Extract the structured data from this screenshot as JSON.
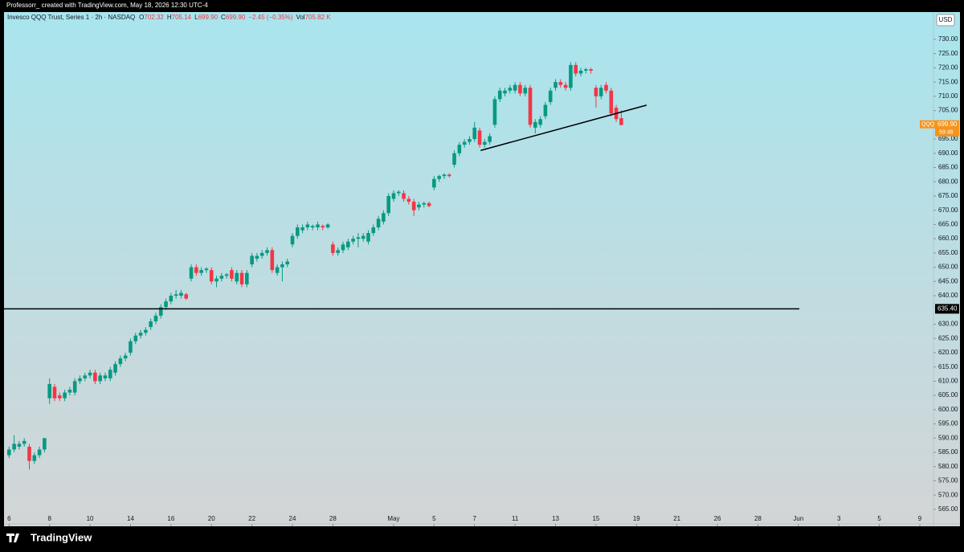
{
  "chart_data": {
    "type": "candlestick",
    "header_text": "Professorr_ created with TradingView.com, May 18, 2026 12:30 UTC-4",
    "symbol_name": "Invesco QQQ Trust, Series 1 · 2h · NASDAQ",
    "ohlc_legend": [
      {
        "label": "O",
        "value": "702.32"
      },
      {
        "label": "H",
        "value": "705.14"
      },
      {
        "label": "L",
        "value": "699.90"
      },
      {
        "label": "C",
        "value": "699.90"
      },
      {
        "label": "",
        "value": "−2.45 (−0.35%)"
      },
      {
        "label": "Vol",
        "value": "705.82 K"
      }
    ],
    "currency": "USD",
    "symbol": "QQQ",
    "countdown": "59:48",
    "brand": "TradingView",
    "up_color": "#089981",
    "down_color": "#f23645",
    "x": [
      0,
      1,
      2,
      3,
      4,
      5,
      6,
      7,
      8,
      9,
      10,
      11,
      12,
      13,
      14,
      15,
      16,
      17,
      18,
      19,
      20,
      21,
      22,
      23,
      24,
      25,
      26,
      27,
      28,
      29,
      30,
      31,
      32,
      33,
      34,
      35,
      36,
      37,
      38,
      39,
      40,
      41,
      42,
      43,
      44,
      45,
      46,
      47,
      48,
      49,
      50,
      51,
      52,
      53,
      54,
      55,
      56,
      57,
      58,
      59,
      60,
      61,
      62,
      63,
      64,
      65,
      66,
      67,
      68,
      69,
      70,
      71,
      72,
      73,
      74,
      75,
      76,
      77,
      78,
      79,
      80,
      81,
      82,
      83,
      84,
      85,
      86,
      87,
      88,
      89,
      90,
      91,
      92,
      93,
      94,
      95,
      96,
      97,
      98,
      99,
      100,
      101,
      102,
      103,
      104,
      105,
      106,
      107,
      108,
      109,
      110,
      111,
      112,
      113,
      114,
      115,
      116,
      117,
      118,
      119,
      120,
      121
    ],
    "open": [
      584,
      586,
      587,
      588,
      587,
      582,
      584,
      586,
      604,
      608,
      605,
      604,
      606,
      606,
      610,
      611,
      612,
      613,
      610,
      611,
      611,
      613,
      616,
      618,
      620,
      624,
      626,
      627,
      629,
      631,
      633,
      636,
      638,
      640,
      640,
      640.5,
      646,
      650,
      648,
      649,
      649,
      645,
      646,
      647,
      649,
      645,
      648,
      644,
      651,
      653,
      654,
      655,
      656,
      648,
      650,
      651,
      658,
      661,
      663,
      664,
      664,
      664,
      664.5,
      664,
      658,
      655,
      656,
      657,
      659,
      660,
      660,
      659,
      662,
      664,
      666,
      669,
      674,
      676,
      676,
      674,
      673,
      671,
      672,
      672.5,
      678,
      681,
      682,
      682.5,
      686,
      690,
      693,
      694,
      695,
      698,
      693,
      694,
      700,
      709,
      711,
      712,
      712,
      714,
      711,
      713,
      699,
      700,
      703,
      708,
      713,
      715,
      714,
      713,
      721,
      718,
      719,
      719.5,
      713,
      710,
      714,
      712,
      706,
      702.32
    ],
    "high": [
      587,
      591,
      589,
      590,
      588,
      585,
      587,
      590,
      611,
      609,
      606,
      607,
      608,
      611,
      612,
      613,
      614,
      614,
      613,
      613,
      615,
      617,
      619,
      620,
      625,
      627,
      628,
      629,
      632,
      634,
      637,
      639,
      641,
      642,
      642,
      641,
      651,
      651,
      650,
      650,
      650,
      647,
      648,
      648,
      650,
      649,
      649,
      649,
      655,
      655,
      656,
      657,
      657,
      651,
      652,
      653,
      662,
      665,
      665,
      666,
      665,
      666,
      665,
      665.5,
      659,
      657,
      659,
      660,
      661,
      662,
      662,
      663,
      665,
      668,
      670,
      676,
      677,
      677,
      677,
      675,
      674,
      673,
      673,
      673,
      682,
      682.5,
      683,
      683,
      691,
      694,
      695,
      696,
      701,
      699,
      695,
      697,
      710,
      713,
      713,
      714,
      715,
      715,
      714,
      714,
      702,
      703,
      708,
      713,
      716,
      716,
      715,
      722,
      722,
      720,
      720,
      720,
      714,
      714,
      715,
      713,
      707,
      705.14
    ],
    "low": [
      583,
      585,
      586,
      587,
      579,
      581,
      583,
      585,
      602,
      603,
      603,
      603,
      605,
      605,
      609,
      610,
      611,
      609,
      609,
      610,
      610,
      612,
      615,
      617,
      619,
      623,
      625,
      626,
      628,
      630,
      632,
      635,
      637,
      639,
      639,
      638.5,
      645,
      647,
      647,
      648,
      644,
      643,
      645,
      646,
      645,
      644,
      643,
      643,
      650,
      652,
      653,
      654,
      648,
      647,
      645,
      650,
      657,
      660,
      662,
      663,
      663,
      663,
      663,
      663.5,
      654,
      654,
      655,
      656,
      658,
      657,
      659,
      658,
      661,
      663,
      665,
      668,
      673,
      675,
      673,
      672,
      668,
      670,
      671,
      671,
      677,
      680,
      681,
      681.5,
      685,
      689,
      692,
      693,
      694,
      692,
      692,
      693,
      699,
      708,
      710,
      711,
      711,
      710,
      710,
      699,
      697,
      699,
      702,
      707,
      712,
      713,
      712,
      712,
      717,
      717,
      718,
      718,
      706,
      709,
      711,
      703,
      701,
      699.9
    ],
    "close": [
      586,
      588,
      588,
      589,
      582,
      584,
      586,
      590,
      609,
      604,
      604,
      606,
      607,
      610,
      611,
      612,
      613,
      610,
      612,
      612,
      614,
      616,
      618,
      619,
      624,
      626,
      627,
      628,
      631,
      633,
      636,
      638,
      640,
      640.5,
      641,
      639,
      650,
      648,
      649,
      649.5,
      645,
      646,
      647,
      647.5,
      646,
      648,
      644,
      648,
      654,
      654,
      655,
      656,
      649,
      650,
      651,
      652,
      661,
      664,
      664,
      665,
      664.5,
      665,
      664,
      665,
      655,
      656,
      658,
      659,
      660,
      660.5,
      661,
      662,
      664,
      667,
      669,
      675,
      676,
      676.5,
      674,
      673,
      670,
      672,
      672.5,
      671.5,
      681,
      682,
      682.5,
      682,
      690,
      693,
      694,
      695,
      699,
      693,
      694,
      696,
      709,
      712,
      712,
      713,
      714,
      711,
      713,
      700,
      701,
      702,
      707,
      712,
      715,
      714,
      713,
      721,
      718,
      719,
      719.5,
      719,
      710,
      713,
      712,
      704,
      702,
      699.9
    ],
    "xlim": [
      -1,
      182.7
    ],
    "xticks": [
      {
        "value": 0,
        "label": "6"
      },
      {
        "value": 8,
        "label": "8"
      },
      {
        "value": 16,
        "label": "10"
      },
      {
        "value": 24,
        "label": "14"
      },
      {
        "value": 32,
        "label": "16"
      },
      {
        "value": 40,
        "label": "20"
      },
      {
        "value": 48,
        "label": "22"
      },
      {
        "value": 56,
        "label": "24"
      },
      {
        "value": 64,
        "label": "28"
      },
      {
        "value": 76,
        "label": "May"
      },
      {
        "value": 84,
        "label": "5"
      },
      {
        "value": 92,
        "label": "7"
      },
      {
        "value": 100,
        "label": "11"
      },
      {
        "value": 108,
        "label": "13"
      },
      {
        "value": 116,
        "label": "15"
      },
      {
        "value": 124,
        "label": "19"
      },
      {
        "value": 132,
        "label": "21"
      },
      {
        "value": 140,
        "label": "26"
      },
      {
        "value": 148,
        "label": "28"
      },
      {
        "value": 156,
        "label": "Jun"
      },
      {
        "value": 164,
        "label": "3"
      },
      {
        "value": 172,
        "label": "5"
      },
      {
        "value": 180,
        "label": "9"
      }
    ],
    "ylim": [
      559.9,
      739.3
    ],
    "yticks": [
      {
        "value": 565,
        "label": "565.00"
      },
      {
        "value": 570,
        "label": "570.00"
      },
      {
        "value": 575,
        "label": "575.00"
      },
      {
        "value": 580,
        "label": "580.00"
      },
      {
        "value": 585,
        "label": "585.00"
      },
      {
        "value": 590,
        "label": "590.00"
      },
      {
        "value": 595,
        "label": "595.00"
      },
      {
        "value": 600,
        "label": "600.00"
      },
      {
        "value": 605,
        "label": "605.00"
      },
      {
        "value": 610,
        "label": "610.00"
      },
      {
        "value": 615,
        "label": "615.00"
      },
      {
        "value": 620,
        "label": "620.00"
      },
      {
        "value": 625,
        "label": "625.00"
      },
      {
        "value": 630,
        "label": "630.00"
      },
      {
        "value": 640,
        "label": "640.00"
      },
      {
        "value": 645,
        "label": "645.00"
      },
      {
        "value": 650,
        "label": "650.00"
      },
      {
        "value": 655,
        "label": "655.00"
      },
      {
        "value": 660,
        "label": "660.00"
      },
      {
        "value": 665,
        "label": "665.00"
      },
      {
        "value": 670,
        "label": "670.00"
      },
      {
        "value": 675,
        "label": "675.00"
      },
      {
        "value": 680,
        "label": "680.00"
      },
      {
        "value": 685,
        "label": "685.00"
      },
      {
        "value": 690,
        "label": "690.00"
      },
      {
        "value": 695,
        "label": "695.00"
      },
      {
        "value": 705,
        "label": "705.00"
      },
      {
        "value": 710,
        "label": "710.00"
      },
      {
        "value": 715,
        "label": "715.00"
      },
      {
        "value": 720,
        "label": "720.00"
      },
      {
        "value": 725,
        "label": "725.00"
      },
      {
        "value": 730,
        "label": "730.00"
      }
    ],
    "hline": {
      "value": 635.4,
      "label": "635.40"
    },
    "last_price": {
      "value": 699.9,
      "label": "699.90"
    },
    "trendline": {
      "x": [
        93.2,
        126
      ],
      "y": [
        691,
        706.9
      ]
    }
  }
}
